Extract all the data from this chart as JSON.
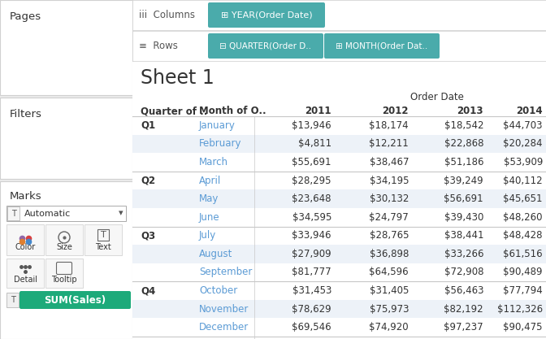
{
  "title": "Sheet 1",
  "order_date_header": "Order Date",
  "quarters": [
    "Q1",
    "Q2",
    "Q3",
    "Q4"
  ],
  "months": [
    [
      "January",
      "February",
      "March"
    ],
    [
      "April",
      "May",
      "June"
    ],
    [
      "July",
      "August",
      "September"
    ],
    [
      "October",
      "November",
      "December"
    ]
  ],
  "data": [
    [
      [
        "$13,946",
        "$18,174",
        "$18,542",
        "$44,703"
      ],
      [
        "$4,811",
        "$12,211",
        "$22,868",
        "$20,284"
      ],
      [
        "$55,691",
        "$38,467",
        "$51,186",
        "$53,909"
      ]
    ],
    [
      [
        "$28,295",
        "$34,195",
        "$39,249",
        "$40,112"
      ],
      [
        "$23,648",
        "$30,132",
        "$56,691",
        "$45,651"
      ],
      [
        "$34,595",
        "$24,797",
        "$39,430",
        "$48,260"
      ]
    ],
    [
      [
        "$33,946",
        "$28,765",
        "$38,441",
        "$48,428"
      ],
      [
        "$27,909",
        "$36,898",
        "$33,266",
        "$61,516"
      ],
      [
        "$81,777",
        "$64,596",
        "$72,908",
        "$90,489"
      ]
    ],
    [
      [
        "$31,453",
        "$31,405",
        "$56,463",
        "$77,794"
      ],
      [
        "$78,629",
        "$75,973",
        "$82,192",
        "$112,326"
      ],
      [
        "$69,546",
        "$74,920",
        "$97,237",
        "$90,475"
      ]
    ]
  ],
  "bg_color": "#ebebeb",
  "panel_bg": "#ffffff",
  "teal_btn": "#4aabab",
  "green_btn": "#1daa7a",
  "text_dark": "#333333",
  "text_month_blue": "#5b9bd5",
  "shade_row": "#edf2f8",
  "separator": "#c8c8c8",
  "sidebar_sep": "#d0d0d0"
}
